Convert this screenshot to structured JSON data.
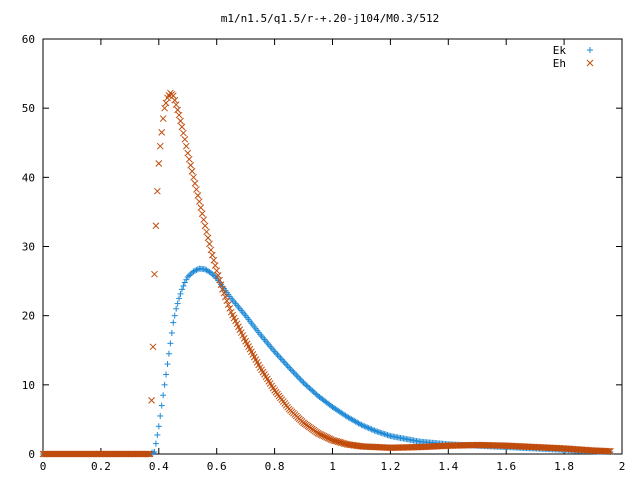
{
  "chart_data": {
    "type": "scatter",
    "title": "m1/n1.5/q1.5/r-+.20-j104/M0.3/512",
    "xlabel": "",
    "ylabel": "",
    "xlim": [
      0,
      2
    ],
    "ylim": [
      0,
      60
    ],
    "x_ticks": [
      0,
      0.2,
      0.4,
      0.6,
      0.8,
      1,
      1.2,
      1.4,
      1.6,
      1.8,
      2
    ],
    "x_tick_labels": [
      "0",
      "0.2",
      "0.4",
      "0.6",
      "0.8",
      "1",
      "1.2",
      "1.4",
      "1.6",
      "1.8",
      "2"
    ],
    "y_ticks": [
      0,
      10,
      20,
      30,
      40,
      50,
      60
    ],
    "y_tick_labels": [
      "0",
      "10",
      "20",
      "30",
      "40",
      "50",
      "60"
    ],
    "grid": false,
    "legend_position": "top-right",
    "series": [
      {
        "name": "Ek",
        "marker": "plus",
        "color": "#1f8ad6",
        "x_range": [
          0.0,
          1.96
        ],
        "points": [
          [
            0.0,
            0
          ],
          [
            0.1,
            0
          ],
          [
            0.2,
            0
          ],
          [
            0.3,
            0
          ],
          [
            0.37,
            0
          ],
          [
            0.385,
            0.3
          ],
          [
            0.39,
            1.5
          ],
          [
            0.4,
            4
          ],
          [
            0.41,
            7
          ],
          [
            0.42,
            10
          ],
          [
            0.43,
            13
          ],
          [
            0.44,
            16
          ],
          [
            0.45,
            19
          ],
          [
            0.46,
            21
          ],
          [
            0.47,
            22.5
          ],
          [
            0.48,
            23.8
          ],
          [
            0.49,
            24.8
          ],
          [
            0.5,
            25.6
          ],
          [
            0.52,
            26.4
          ],
          [
            0.54,
            26.8
          ],
          [
            0.56,
            26.7
          ],
          [
            0.58,
            26.2
          ],
          [
            0.6,
            25.4
          ],
          [
            0.62,
            24.2
          ],
          [
            0.65,
            22.5
          ],
          [
            0.7,
            20.0
          ],
          [
            0.75,
            17.3
          ],
          [
            0.8,
            14.8
          ],
          [
            0.85,
            12.5
          ],
          [
            0.9,
            10.3
          ],
          [
            0.95,
            8.4
          ],
          [
            1.0,
            6.8
          ],
          [
            1.05,
            5.4
          ],
          [
            1.1,
            4.2
          ],
          [
            1.15,
            3.3
          ],
          [
            1.2,
            2.6
          ],
          [
            1.3,
            1.8
          ],
          [
            1.4,
            1.4
          ],
          [
            1.5,
            1.2
          ],
          [
            1.6,
            1.0
          ],
          [
            1.7,
            0.8
          ],
          [
            1.8,
            0.6
          ],
          [
            1.9,
            0.4
          ],
          [
            1.96,
            0.3
          ]
        ]
      },
      {
        "name": "Eh",
        "marker": "cross",
        "color": "#c04c0c",
        "x_range": [
          0.0,
          1.96
        ],
        "points": [
          [
            0.0,
            0
          ],
          [
            0.1,
            0
          ],
          [
            0.2,
            0
          ],
          [
            0.3,
            0
          ],
          [
            0.37,
            0
          ],
          [
            0.38,
            15.5
          ],
          [
            0.385,
            26
          ],
          [
            0.39,
            33
          ],
          [
            0.395,
            38
          ],
          [
            0.4,
            42
          ],
          [
            0.405,
            44.5
          ],
          [
            0.41,
            46.5
          ],
          [
            0.415,
            48.5
          ],
          [
            0.42,
            50
          ],
          [
            0.43,
            51.5
          ],
          [
            0.44,
            52.2
          ],
          [
            0.45,
            51.8
          ],
          [
            0.46,
            50.5
          ],
          [
            0.47,
            49
          ],
          [
            0.48,
            47.3
          ],
          [
            0.49,
            45.5
          ],
          [
            0.5,
            43.5
          ],
          [
            0.52,
            40
          ],
          [
            0.54,
            36.5
          ],
          [
            0.56,
            33
          ],
          [
            0.58,
            29.5
          ],
          [
            0.6,
            26.5
          ],
          [
            0.62,
            23.8
          ],
          [
            0.65,
            20.5
          ],
          [
            0.7,
            16.3
          ],
          [
            0.75,
            12.5
          ],
          [
            0.8,
            9.2
          ],
          [
            0.85,
            6.5
          ],
          [
            0.9,
            4.5
          ],
          [
            0.95,
            3.0
          ],
          [
            1.0,
            2.0
          ],
          [
            1.05,
            1.4
          ],
          [
            1.1,
            1.1
          ],
          [
            1.2,
            0.9
          ],
          [
            1.3,
            1.0
          ],
          [
            1.4,
            1.2
          ],
          [
            1.5,
            1.3
          ],
          [
            1.6,
            1.2
          ],
          [
            1.7,
            1.0
          ],
          [
            1.8,
            0.8
          ],
          [
            1.9,
            0.5
          ],
          [
            1.96,
            0.4
          ]
        ]
      }
    ]
  }
}
